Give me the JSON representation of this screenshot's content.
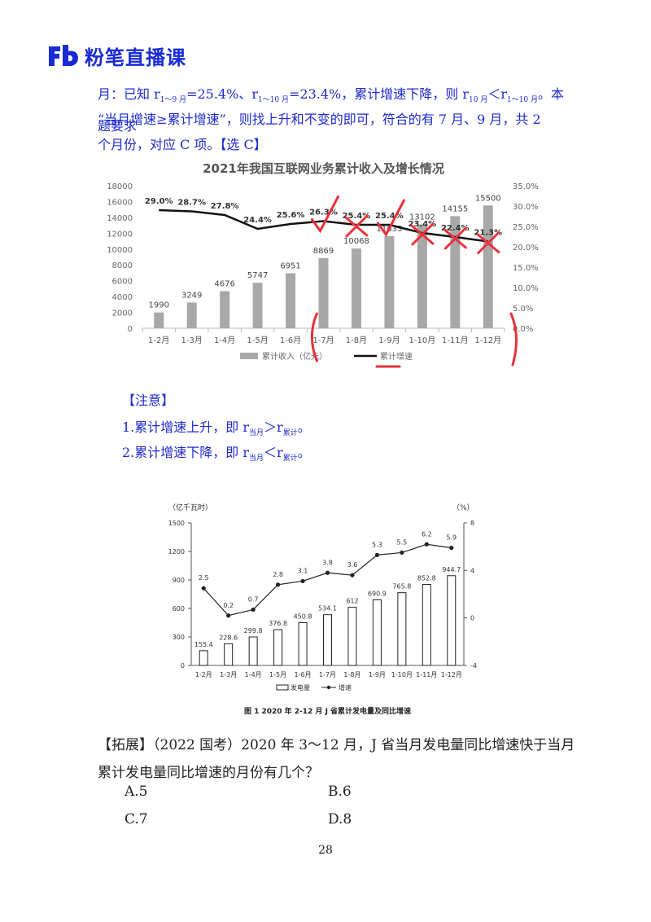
{
  "header": {
    "brand": "粉笔直播课",
    "logo_icon": "fb-logo-icon"
  },
  "intro": {
    "line1_a": "月：已知 r",
    "line1_sub1": "1～9 月",
    "line1_b": "=25.4%、r",
    "line1_sub2": "1～10 月",
    "line1_c": "=23.4%，累计增速下降，则 r",
    "line1_sub3": "10 月",
    "line1_d": "＜r",
    "line1_sub4": "1～10 月",
    "line1_e": "。本题要求",
    "line2": "“当月增速≥累计增速”，则找上升和不变的即可，符合的有 7 月、9 月，共 2",
    "line3": "个月份，对应 C 项。【选 C】"
  },
  "note": {
    "title": "【注意】",
    "item1_a": "1.累计增速上升，即 r",
    "item1_sub1": "当月",
    "item1_b": "＞r",
    "item1_sub2": "累计",
    "item1_c": "。",
    "item2_a": "2.累计增速下降，即 r",
    "item2_sub1": "当月",
    "item2_b": "＜r",
    "item2_sub2": "累计",
    "item2_c": "。"
  },
  "chart_data": [
    {
      "type": "bar",
      "title": "2021年我国互联网业务累计收入及增长情况",
      "categories": [
        "1-2月",
        "1-3月",
        "1-4月",
        "1-5月",
        "1-6月",
        "1-7月",
        "1-8月",
        "1-9月",
        "1-10月",
        "1-11月",
        "1-12月"
      ],
      "series": [
        {
          "name": "累计收入（亿元）",
          "type": "bar",
          "axis": "left",
          "values": [
            1990,
            3249,
            4676,
            5747,
            6951,
            8869,
            10068,
            11633,
            13102,
            14155,
            15500
          ],
          "labels": [
            "1990",
            "3249",
            "4676",
            "5747",
            "6951",
            "8869",
            "10068",
            "11633",
            "13102",
            "14155",
            "15500"
          ]
        },
        {
          "name": "累计增速",
          "type": "line",
          "axis": "right",
          "values": [
            29.0,
            28.7,
            27.8,
            24.4,
            25.6,
            26.3,
            25.4,
            25.4,
            23.4,
            22.4,
            21.3
          ],
          "labels": [
            "29.0%",
            "28.7%",
            "27.8%",
            "24.4%",
            "25.6%",
            "26.3%",
            "25.4%",
            "25.4%",
            "23.4%",
            "22.4%",
            "21.3%"
          ]
        }
      ],
      "ylim": [
        0,
        18000
      ],
      "yticks": [
        "0",
        "2000",
        "4000",
        "6000",
        "8000",
        "10000",
        "12000",
        "14000",
        "16000",
        "18000"
      ],
      "y2lim": [
        0,
        35
      ],
      "y2ticks": [
        "0.0%",
        "5.0%",
        "10.0%",
        "15.0%",
        "20.0%",
        "25.0%",
        "30.0%",
        "35.0%"
      ],
      "legend": "bottom",
      "annotation_color": "#e8323c"
    },
    {
      "type": "bar",
      "caption": "图 1    2020 年 2-12 月 J 省累计发电量及同比增速",
      "ylabel": "（亿千瓦时）",
      "y2label": "（%）",
      "categories": [
        "1-2月",
        "1-3月",
        "1-4月",
        "1-5月",
        "1-6月",
        "1-7月",
        "1-8月",
        "1-9月",
        "1-10月",
        "1-11月",
        "1-12月"
      ],
      "series": [
        {
          "name": "发电量",
          "type": "bar",
          "axis": "left",
          "values": [
            155.4,
            228.6,
            299.8,
            376.8,
            450.8,
            534.1,
            612,
            690.9,
            765.8,
            852.8,
            944.7
          ],
          "labels": [
            "155.4",
            "228.6",
            "299.8",
            "376.8",
            "450.8",
            "534.1",
            "612",
            "690.9",
            "765.8",
            "852.8",
            "944.7"
          ]
        },
        {
          "name": "增速",
          "type": "line",
          "axis": "right",
          "values": [
            2.5,
            0.2,
            0.7,
            2.8,
            3.1,
            3.8,
            3.6,
            5.3,
            5.5,
            6.2,
            5.9
          ],
          "labels": [
            "2.5",
            "0.2",
            "0.7",
            "2.8",
            "3.1",
            "3.8",
            "3.6",
            "5.3",
            "5.5",
            "6.2",
            "5.9"
          ]
        }
      ],
      "ylim": [
        0,
        1500
      ],
      "yticks": [
        "0",
        "300",
        "600",
        "900",
        "1200",
        "1500"
      ],
      "y2lim": [
        -4,
        8
      ],
      "y2ticks": [
        "-4",
        "0",
        "4",
        "8"
      ],
      "legend": "bottom"
    }
  ],
  "question": {
    "stem_line1": "【拓展】（2022 国考）2020 年 3～12 月，J 省当月发电量同比增速快于当月",
    "stem_line2": "累计发电量同比增速的月份有几个？",
    "options": [
      {
        "label": "A.5"
      },
      {
        "label": "B.6"
      },
      {
        "label": "C.7"
      },
      {
        "label": "D.8"
      }
    ]
  },
  "page_number": "28"
}
